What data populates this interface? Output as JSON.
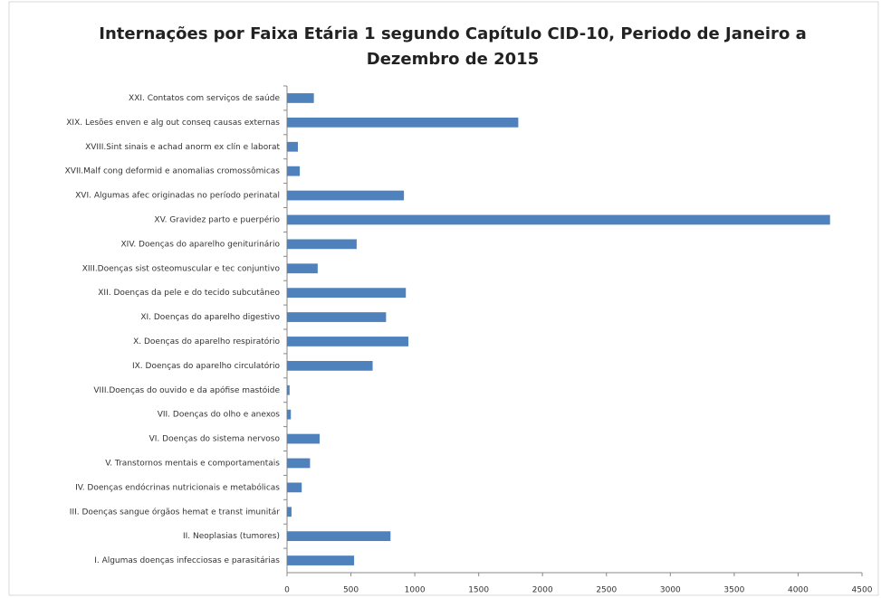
{
  "chart_data": {
    "type": "bar",
    "orientation": "horizontal",
    "title": "Internações por Faixa Etária 1 segundo Capítulo CID-10, Periodo de Janeiro a Dezembro de 2015",
    "categories": [
      "XXI. Contatos com serviços de saúde",
      "XIX. Lesões enven e alg out conseq causas externas",
      "XVIII.Sint sinais e achad anorm ex clín e laborat",
      "XVII.Malf cong deformid e anomalias cromossômicas",
      "XVI. Algumas afec originadas no período perinatal",
      "XV. Gravidez parto e puerpério",
      "XIV. Doenças do aparelho geniturinário",
      "XIII.Doenças sist osteomuscular e tec conjuntivo",
      "XII. Doenças da pele e do tecido subcutâneo",
      "XI. Doenças do aparelho digestivo",
      "X. Doenças do aparelho respiratório",
      "IX. Doenças do aparelho circulatório",
      "VIII.Doenças do ouvido e da apófise mastóide",
      "VII. Doenças do olho e anexos",
      "VI. Doenças do sistema nervoso",
      "V. Transtornos mentais e comportamentais",
      "IV. Doenças endócrinas nutricionais e metabólicas",
      "III. Doenças sangue órgãos hemat e transt imunitár",
      "II. Neoplasias (tumores)",
      "I. Algumas doenças infecciosas e parasitárias"
    ],
    "values": [
      210,
      1810,
      85,
      100,
      915,
      4250,
      545,
      240,
      930,
      775,
      950,
      670,
      20,
      30,
      255,
      180,
      115,
      35,
      810,
      525
    ],
    "color": "#4f81bd",
    "xlim": [
      0,
      4500
    ],
    "xticks": [
      0,
      500,
      1000,
      1500,
      2000,
      2500,
      3000,
      3500,
      4000,
      4500
    ]
  }
}
